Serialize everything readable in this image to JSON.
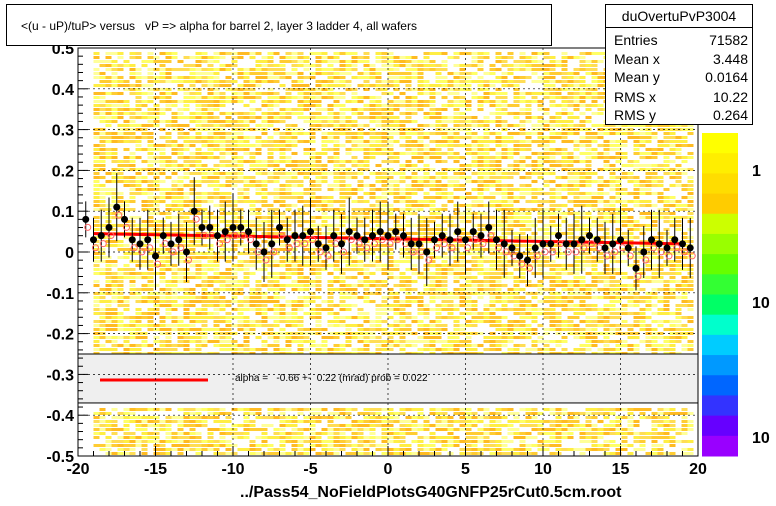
{
  "title": "<(u - uP)/tuP> versus   vP => alpha for barrel 2, layer 3 ladder 4, all wafers",
  "stats": {
    "name": "duOvertuPvP3004",
    "rows": [
      {
        "k": "Entries",
        "v": "71582"
      },
      {
        "k": "Mean x",
        "v": "3.448"
      },
      {
        "k": "Mean y",
        "v": "0.0164"
      },
      {
        "k": "RMS x",
        "v": "10.22"
      },
      {
        "k": "RMS y",
        "v": "0.264"
      }
    ]
  },
  "filename": "../Pass54_NoFieldPlotsG40GNFP25rCut0.5cm.root",
  "fit_label": "alpha =   -0.66 +-  0.22 (mrad) prob = 0.022",
  "colorbar_labels": [
    "1",
    "10",
    "10"
  ],
  "colors": {
    "fit_line": "#ff0000",
    "points": "#000000",
    "open_points": "#ff6666"
  },
  "chart_data": {
    "type": "scatter",
    "xlim": [
      -20,
      20
    ],
    "ylim": [
      -0.5,
      0.5
    ],
    "x_ticks": [
      -20,
      -15,
      -10,
      -5,
      0,
      5,
      10,
      15,
      20
    ],
    "x_tick_labels": [
      "-20",
      "-15",
      "-10",
      "-5",
      "0",
      "5",
      "10",
      "15",
      "20"
    ],
    "y_ticks": [
      -0.5,
      -0.4,
      -0.3,
      -0.2,
      -0.1,
      0,
      0.1,
      0.2,
      0.3,
      0.4,
      0.5
    ],
    "y_tick_labels": [
      "-0.5",
      "-0.4",
      "-0.3",
      "-0.2",
      "-0.1",
      "0",
      "0.1",
      "0.2",
      "0.3",
      "0.4",
      "0.5"
    ],
    "grid": true,
    "fit_line": {
      "x": [
        -19,
        19
      ],
      "y": [
        0.045,
        0.02
      ]
    },
    "points": [
      {
        "x": -19.5,
        "y": 0.08
      },
      {
        "x": -19.0,
        "y": 0.03
      },
      {
        "x": -18.5,
        "y": 0.04
      },
      {
        "x": -18.0,
        "y": 0.06
      },
      {
        "x": -17.5,
        "y": 0.11
      },
      {
        "x": -17.0,
        "y": 0.08
      },
      {
        "x": -16.5,
        "y": 0.03
      },
      {
        "x": -16.0,
        "y": 0.02
      },
      {
        "x": -15.5,
        "y": 0.03
      },
      {
        "x": -15.0,
        "y": -0.01
      },
      {
        "x": -14.5,
        "y": 0.04
      },
      {
        "x": -14.0,
        "y": 0.02
      },
      {
        "x": -13.5,
        "y": 0.03
      },
      {
        "x": -13.0,
        "y": 0.0
      },
      {
        "x": -12.5,
        "y": 0.1
      },
      {
        "x": -12.0,
        "y": 0.06
      },
      {
        "x": -11.5,
        "y": 0.06
      },
      {
        "x": -11.0,
        "y": 0.04
      },
      {
        "x": -10.5,
        "y": 0.05
      },
      {
        "x": -10.0,
        "y": 0.06
      },
      {
        "x": -9.5,
        "y": 0.06
      },
      {
        "x": -9.0,
        "y": 0.05
      },
      {
        "x": -8.5,
        "y": 0.02
      },
      {
        "x": -8.0,
        "y": 0.0
      },
      {
        "x": -7.5,
        "y": 0.02
      },
      {
        "x": -7.0,
        "y": 0.06
      },
      {
        "x": -6.5,
        "y": 0.03
      },
      {
        "x": -6.0,
        "y": 0.04
      },
      {
        "x": -5.5,
        "y": 0.04
      },
      {
        "x": -5.0,
        "y": 0.05
      },
      {
        "x": -4.5,
        "y": 0.02
      },
      {
        "x": -4.0,
        "y": 0.01
      },
      {
        "x": -3.5,
        "y": 0.04
      },
      {
        "x": -3.0,
        "y": 0.02
      },
      {
        "x": -2.5,
        "y": 0.05
      },
      {
        "x": -2.0,
        "y": 0.04
      },
      {
        "x": -1.5,
        "y": 0.03
      },
      {
        "x": -1.0,
        "y": 0.04
      },
      {
        "x": -0.5,
        "y": 0.05
      },
      {
        "x": 0.0,
        "y": 0.04
      },
      {
        "x": 0.5,
        "y": 0.05
      },
      {
        "x": 1.0,
        "y": 0.04
      },
      {
        "x": 1.5,
        "y": 0.02
      },
      {
        "x": 2.0,
        "y": 0.02
      },
      {
        "x": 2.5,
        "y": 0.0
      },
      {
        "x": 3.0,
        "y": 0.03
      },
      {
        "x": 3.5,
        "y": 0.04
      },
      {
        "x": 4.0,
        "y": 0.03
      },
      {
        "x": 4.5,
        "y": 0.05
      },
      {
        "x": 5.0,
        "y": 0.03
      },
      {
        "x": 5.5,
        "y": 0.05
      },
      {
        "x": 6.0,
        "y": 0.04
      },
      {
        "x": 6.5,
        "y": 0.06
      },
      {
        "x": 7.0,
        "y": 0.03
      },
      {
        "x": 7.5,
        "y": 0.02
      },
      {
        "x": 8.0,
        "y": 0.01
      },
      {
        "x": 8.5,
        "y": -0.01
      },
      {
        "x": 9.0,
        "y": -0.02
      },
      {
        "x": 9.5,
        "y": 0.01
      },
      {
        "x": 10.0,
        "y": 0.02
      },
      {
        "x": 10.5,
        "y": 0.02
      },
      {
        "x": 11.0,
        "y": 0.04
      },
      {
        "x": 11.5,
        "y": 0.02
      },
      {
        "x": 12.0,
        "y": 0.02
      },
      {
        "x": 12.5,
        "y": 0.03
      },
      {
        "x": 13.0,
        "y": 0.04
      },
      {
        "x": 13.5,
        "y": 0.03
      },
      {
        "x": 14.0,
        "y": 0.01
      },
      {
        "x": 14.5,
        "y": 0.02
      },
      {
        "x": 15.0,
        "y": 0.03
      },
      {
        "x": 15.5,
        "y": 0.01
      },
      {
        "x": 16.0,
        "y": -0.04
      },
      {
        "x": 16.5,
        "y": 0.0
      },
      {
        "x": 17.0,
        "y": 0.03
      },
      {
        "x": 17.5,
        "y": 0.02
      },
      {
        "x": 18.0,
        "y": 0.01
      },
      {
        "x": 18.5,
        "y": 0.03
      },
      {
        "x": 19.0,
        "y": 0.02
      },
      {
        "x": 19.5,
        "y": 0.01
      }
    ]
  }
}
